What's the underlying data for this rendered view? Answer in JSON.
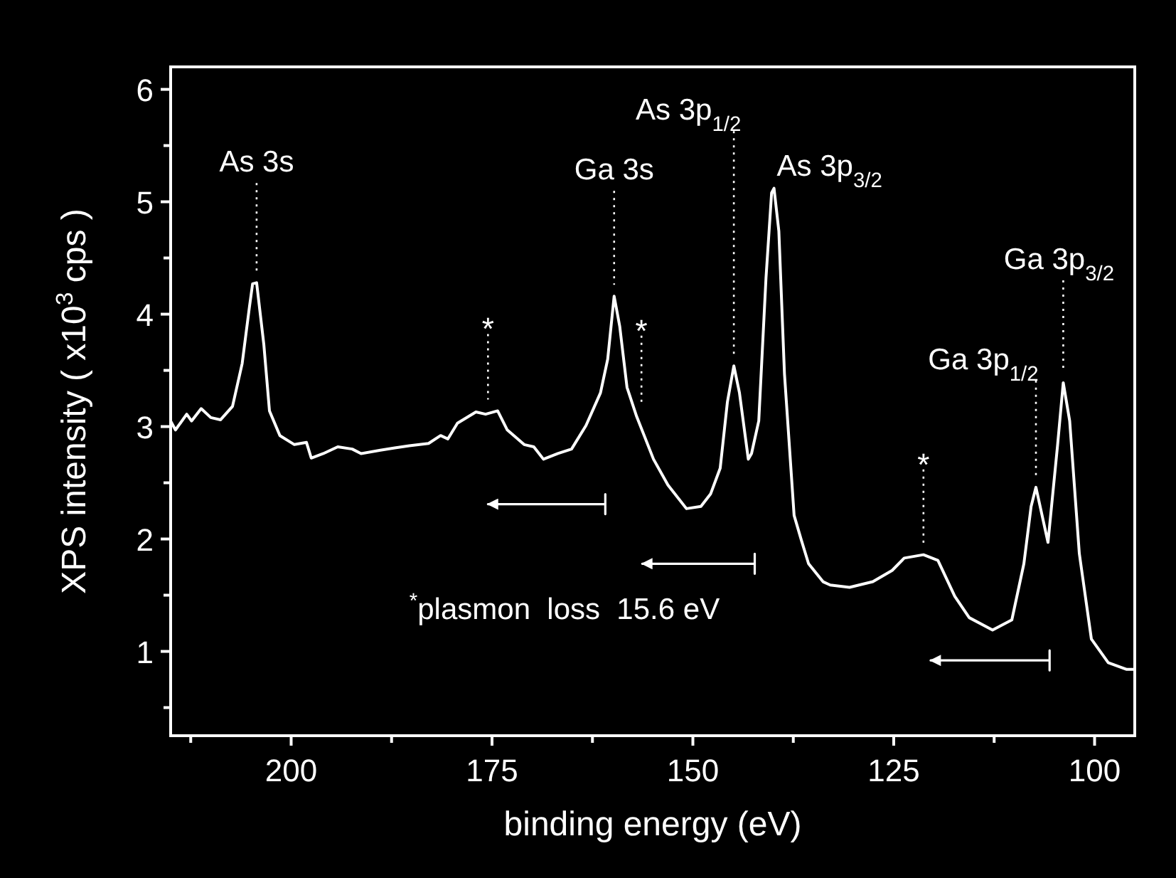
{
  "chart_data": {
    "type": "line",
    "xlabel": "binding energy (eV)",
    "ylabel": "XPS intensity ( x10$^{3}$ cps )",
    "xlim": [
      215,
      95
    ],
    "ylim": [
      0.25,
      6.2
    ],
    "xticks": [
      {
        "value": 212.5,
        "label": null
      },
      200,
      {
        "value": 187.5,
        "label": null
      },
      175,
      {
        "value": 162.5,
        "label": null
      },
      150,
      {
        "value": 137.5,
        "label": null
      },
      125,
      {
        "value": 112.5,
        "label": null
      },
      100
    ],
    "yticks": [
      {
        "value": 0.5,
        "label": null
      },
      1,
      {
        "value": 1.5,
        "label": null
      },
      2,
      {
        "value": 2.5,
        "label": null
      },
      3,
      {
        "value": 3.5,
        "label": null
      },
      4,
      {
        "value": 4.5,
        "label": null
      },
      5,
      {
        "value": 5.5,
        "label": null
      },
      6
    ],
    "series": [
      {
        "color": "#ffffff",
        "x": [
          215,
          214.4,
          213,
          212.4,
          211.2,
          210,
          208.8,
          207.3,
          206.1,
          205.2,
          204.8,
          204.3,
          203.4,
          202.7,
          201.4,
          199.6,
          198.1,
          197.5,
          196,
          194.2,
          192.4,
          191.3,
          188.9,
          187.1,
          185.3,
          182.9,
          181.4,
          180.5,
          179.3,
          177,
          175.8,
          174.3,
          173.1,
          171,
          169.8,
          168.6,
          166.8,
          165.1,
          163.3,
          161.5,
          160.6,
          159.8,
          159.1,
          158.2,
          157,
          154.9,
          153.1,
          150.8,
          149,
          147.8,
          146.6,
          145.7,
          144.9,
          144.2,
          143.1,
          142.7,
          141.8,
          140.9,
          140.2,
          139.9,
          139.3,
          138.6,
          137.4,
          136.5,
          135.6,
          133.8,
          132.9,
          130.5,
          127.6,
          125.2,
          123.7,
          121.3,
          119.5,
          117.4,
          115.6,
          112.7,
          110.3,
          108.8,
          107.9,
          107.3,
          105.8,
          104.6,
          103.9,
          103.1,
          101.9,
          100.4,
          98.3,
          96,
          95
        ],
        "values": [
          3.05,
          2.97,
          3.11,
          3.05,
          3.16,
          3.08,
          3.06,
          3.18,
          3.56,
          4.06,
          4.27,
          4.28,
          3.73,
          3.14,
          2.92,
          2.84,
          2.86,
          2.72,
          2.76,
          2.82,
          2.8,
          2.76,
          2.79,
          2.81,
          2.83,
          2.85,
          2.92,
          2.89,
          3.03,
          3.13,
          3.11,
          3.14,
          2.97,
          2.84,
          2.82,
          2.71,
          2.76,
          2.8,
          3.01,
          3.3,
          3.6,
          4.16,
          3.89,
          3.35,
          3.09,
          2.71,
          2.48,
          2.27,
          2.29,
          2.4,
          2.63,
          3.22,
          3.54,
          3.3,
          2.71,
          2.76,
          3.05,
          4.32,
          5.08,
          5.12,
          4.74,
          3.47,
          2.21,
          1.99,
          1.78,
          1.62,
          1.59,
          1.57,
          1.62,
          1.72,
          1.83,
          1.86,
          1.81,
          1.49,
          1.3,
          1.19,
          1.28,
          1.78,
          2.29,
          2.46,
          1.97,
          2.84,
          3.39,
          3.05,
          1.87,
          1.11,
          0.9,
          0.84,
          0.84
        ]
      },
      {
        "color": "#ffffff",
        "x": [
          175.5,
          160.9
        ],
        "values": [
          2.31,
          2.31
        ]
      },
      {
        "color": "#ffffff",
        "x": [
          156.3,
          142.3
        ],
        "values": [
          1.78,
          1.78
        ]
      },
      {
        "color": "#ffffff",
        "x": [
          120.4,
          105.6
        ],
        "values": [
          0.92,
          0.92
        ]
      }
    ],
    "annotations": [
      {
        "text": "As 3s",
        "x": 204.3,
        "y": 4.28
      },
      {
        "text": "Ga 3s",
        "x": 159.8,
        "y": 4.16
      },
      {
        "text": "As 3p$_{1/2}$",
        "x": 144.9,
        "y": 3.54
      },
      {
        "text": "As 3p$_{3/2}$",
        "x": 139.9,
        "y": 5.12
      },
      {
        "text": "Ga 3p$_{1/2}$",
        "x": 107.3,
        "y": 2.46
      },
      {
        "text": "Ga 3p$_{3/2}$",
        "x": 103.9,
        "y": 3.39
      },
      {
        "text": "*",
        "x": 175.5,
        "y": 3.14
      },
      {
        "text": "*",
        "x": 156.4,
        "y": 3.1
      },
      {
        "text": "*",
        "x": 121.3,
        "y": 1.86
      },
      "$^{*}$plasmon  loss  15.6 eV"
    ]
  }
}
